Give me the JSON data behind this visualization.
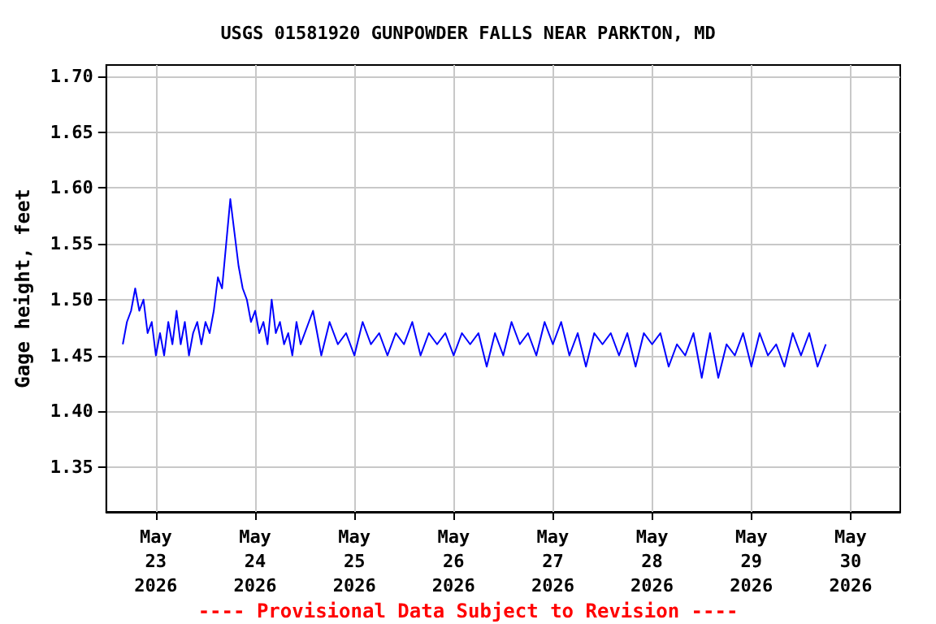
{
  "chart_data": {
    "type": "line",
    "title": "USGS 01581920 GUNPOWDER FALLS NEAR PARKTON, MD",
    "ylabel": "Gage height, feet",
    "annotations": [
      "---- Provisional Data Subject to Revision ----"
    ],
    "xlim": [
      "2026-05-22T12:00",
      "2026-05-30T12:00"
    ],
    "xticks": [
      {
        "value": "2026-05-23",
        "label": "May\n23\n2026"
      },
      {
        "value": "2026-05-24",
        "label": "May\n24\n2026"
      },
      {
        "value": "2026-05-25",
        "label": "May\n25\n2026"
      },
      {
        "value": "2026-05-26",
        "label": "May\n26\n2026"
      },
      {
        "value": "2026-05-27",
        "label": "May\n27\n2026"
      },
      {
        "value": "2026-05-28",
        "label": "May\n28\n2026"
      },
      {
        "value": "2026-05-29",
        "label": "May\n29\n2026"
      },
      {
        "value": "2026-05-30",
        "label": "May\n30\n2026"
      }
    ],
    "ylim": [
      1.31,
      1.71
    ],
    "yticks": [
      {
        "value": 1.35,
        "label": "1.35"
      },
      {
        "value": 1.4,
        "label": "1.40"
      },
      {
        "value": 1.45,
        "label": "1.45"
      },
      {
        "value": 1.5,
        "label": "1.50"
      },
      {
        "value": 1.55,
        "label": "1.55"
      },
      {
        "value": 1.6,
        "label": "1.60"
      },
      {
        "value": 1.65,
        "label": "1.65"
      },
      {
        "value": 1.7,
        "label": "1.70"
      }
    ],
    "grid": true,
    "marker": "none",
    "line_style": "solid",
    "series": [
      {
        "color": "#0000ff",
        "x": [
          "2026-05-22T16:00",
          "2026-05-22T17:00",
          "2026-05-22T18:00",
          "2026-05-22T19:00",
          "2026-05-22T20:00",
          "2026-05-22T21:00",
          "2026-05-22T22:00",
          "2026-05-22T23:00",
          "2026-05-23T00:00",
          "2026-05-23T01:00",
          "2026-05-23T02:00",
          "2026-05-23T03:00",
          "2026-05-23T04:00",
          "2026-05-23T05:00",
          "2026-05-23T06:00",
          "2026-05-23T07:00",
          "2026-05-23T08:00",
          "2026-05-23T09:00",
          "2026-05-23T10:00",
          "2026-05-23T11:00",
          "2026-05-23T12:00",
          "2026-05-23T13:00",
          "2026-05-23T14:00",
          "2026-05-23T15:00",
          "2026-05-23T16:00",
          "2026-05-23T17:00",
          "2026-05-23T18:00",
          "2026-05-23T19:00",
          "2026-05-23T20:00",
          "2026-05-23T21:00",
          "2026-05-23T22:00",
          "2026-05-23T23:00",
          "2026-05-24T00:00",
          "2026-05-24T01:00",
          "2026-05-24T02:00",
          "2026-05-24T03:00",
          "2026-05-24T04:00",
          "2026-05-24T05:00",
          "2026-05-24T06:00",
          "2026-05-24T07:00",
          "2026-05-24T08:00",
          "2026-05-24T09:00",
          "2026-05-24T10:00",
          "2026-05-24T11:00",
          "2026-05-24T12:00",
          "2026-05-24T14:00",
          "2026-05-24T16:00",
          "2026-05-24T18:00",
          "2026-05-24T20:00",
          "2026-05-24T22:00",
          "2026-05-25T00:00",
          "2026-05-25T02:00",
          "2026-05-25T04:00",
          "2026-05-25T06:00",
          "2026-05-25T08:00",
          "2026-05-25T10:00",
          "2026-05-25T12:00",
          "2026-05-25T14:00",
          "2026-05-25T16:00",
          "2026-05-25T18:00",
          "2026-05-25T20:00",
          "2026-05-25T22:00",
          "2026-05-26T00:00",
          "2026-05-26T02:00",
          "2026-05-26T04:00",
          "2026-05-26T06:00",
          "2026-05-26T08:00",
          "2026-05-26T10:00",
          "2026-05-26T12:00",
          "2026-05-26T14:00",
          "2026-05-26T16:00",
          "2026-05-26T18:00",
          "2026-05-26T20:00",
          "2026-05-26T22:00",
          "2026-05-27T00:00",
          "2026-05-27T02:00",
          "2026-05-27T04:00",
          "2026-05-27T06:00",
          "2026-05-27T08:00",
          "2026-05-27T10:00",
          "2026-05-27T12:00",
          "2026-05-27T14:00",
          "2026-05-27T16:00",
          "2026-05-27T18:00",
          "2026-05-27T20:00",
          "2026-05-27T22:00",
          "2026-05-28T00:00",
          "2026-05-28T02:00",
          "2026-05-28T04:00",
          "2026-05-28T06:00",
          "2026-05-28T08:00",
          "2026-05-28T10:00",
          "2026-05-28T12:00",
          "2026-05-28T14:00",
          "2026-05-28T16:00",
          "2026-05-28T18:00",
          "2026-05-28T20:00",
          "2026-05-28T22:00",
          "2026-05-29T00:00",
          "2026-05-29T02:00",
          "2026-05-29T04:00",
          "2026-05-29T06:00",
          "2026-05-29T08:00",
          "2026-05-29T10:00",
          "2026-05-29T12:00",
          "2026-05-29T14:00",
          "2026-05-29T16:00",
          "2026-05-29T18:00"
        ],
        "values": [
          1.46,
          1.48,
          1.49,
          1.51,
          1.49,
          1.5,
          1.47,
          1.48,
          1.45,
          1.47,
          1.45,
          1.48,
          1.46,
          1.49,
          1.46,
          1.48,
          1.45,
          1.47,
          1.48,
          1.46,
          1.48,
          1.47,
          1.49,
          1.52,
          1.51,
          1.55,
          1.59,
          1.56,
          1.53,
          1.51,
          1.5,
          1.48,
          1.49,
          1.47,
          1.48,
          1.46,
          1.5,
          1.47,
          1.48,
          1.46,
          1.47,
          1.45,
          1.48,
          1.46,
          1.47,
          1.49,
          1.45,
          1.48,
          1.46,
          1.47,
          1.45,
          1.48,
          1.46,
          1.47,
          1.45,
          1.47,
          1.46,
          1.48,
          1.45,
          1.47,
          1.46,
          1.47,
          1.45,
          1.47,
          1.46,
          1.47,
          1.44,
          1.47,
          1.45,
          1.48,
          1.46,
          1.47,
          1.45,
          1.48,
          1.46,
          1.48,
          1.45,
          1.47,
          1.44,
          1.47,
          1.46,
          1.47,
          1.45,
          1.47,
          1.44,
          1.47,
          1.46,
          1.47,
          1.44,
          1.46,
          1.45,
          1.47,
          1.43,
          1.47,
          1.43,
          1.46,
          1.45,
          1.47,
          1.44,
          1.47,
          1.45,
          1.46,
          1.44,
          1.47,
          1.45,
          1.47,
          1.44,
          1.46
        ]
      }
    ]
  }
}
